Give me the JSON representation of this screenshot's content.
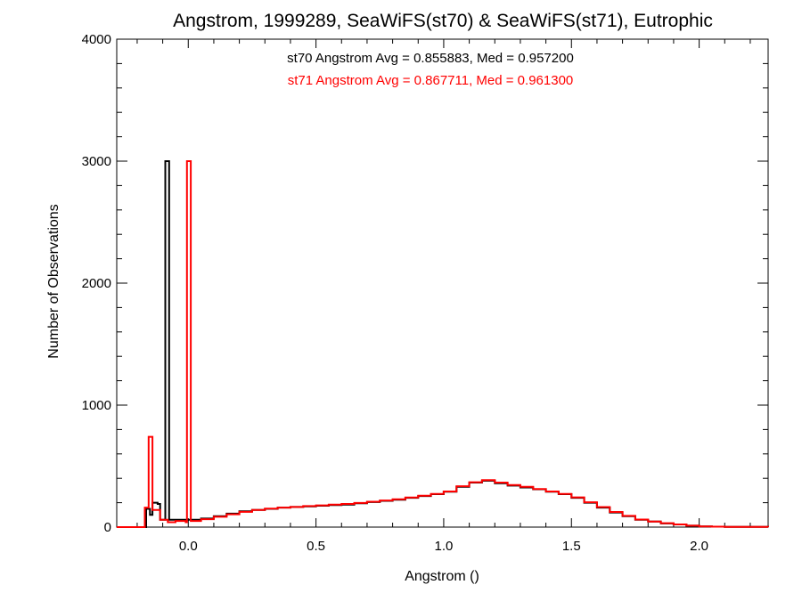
{
  "chart_data": {
    "type": "histogram",
    "title": "Angstrom, 1999289, SeaWiFS(st70) & SeaWiFS(st71), Eutrophic",
    "xlabel": "Angstrom ()",
    "ylabel": "Number of Observations",
    "xlim": [
      -0.28,
      2.27
    ],
    "ylim": [
      0,
      4000
    ],
    "x_ticks": [
      0.0,
      0.5,
      1.0,
      1.5,
      2.0
    ],
    "x_tick_labels": [
      "0.0",
      "0.5",
      "1.0",
      "1.5",
      "2.0"
    ],
    "y_ticks": [
      0,
      1000,
      2000,
      3000,
      4000
    ],
    "y_tick_labels": [
      "0",
      "1000",
      "2000",
      "3000",
      "4000"
    ],
    "grid": false,
    "annotations": [
      {
        "text": "st70 Angstrom Avg = 0.855883, Med = 0.957200",
        "color": "#000000"
      },
      {
        "text": "st71 Angstrom Avg = 0.867711, Med = 0.961300",
        "color": "#ff0000"
      }
    ],
    "series": [
      {
        "color": "#000000",
        "points": [
          [
            -0.28,
            0
          ],
          [
            -0.17,
            0
          ],
          [
            -0.165,
            150
          ],
          [
            -0.155,
            150
          ],
          [
            -0.15,
            100
          ],
          [
            -0.14,
            200
          ],
          [
            -0.12,
            190
          ],
          [
            -0.11,
            60
          ],
          [
            -0.095,
            60
          ],
          [
            -0.09,
            3000
          ],
          [
            -0.08,
            3000
          ],
          [
            -0.075,
            60
          ],
          [
            -0.05,
            60
          ],
          [
            0.0,
            60
          ],
          [
            0.05,
            70
          ],
          [
            0.1,
            90
          ],
          [
            0.15,
            110
          ],
          [
            0.2,
            130
          ],
          [
            0.25,
            140
          ],
          [
            0.3,
            150
          ],
          [
            0.35,
            160
          ],
          [
            0.4,
            165
          ],
          [
            0.45,
            170
          ],
          [
            0.5,
            175
          ],
          [
            0.55,
            180
          ],
          [
            0.6,
            185
          ],
          [
            0.65,
            195
          ],
          [
            0.7,
            205
          ],
          [
            0.75,
            215
          ],
          [
            0.8,
            225
          ],
          [
            0.85,
            240
          ],
          [
            0.9,
            255
          ],
          [
            0.95,
            270
          ],
          [
            1.0,
            290
          ],
          [
            1.05,
            330
          ],
          [
            1.1,
            365
          ],
          [
            1.15,
            380
          ],
          [
            1.2,
            360
          ],
          [
            1.25,
            340
          ],
          [
            1.3,
            325
          ],
          [
            1.35,
            310
          ],
          [
            1.4,
            290
          ],
          [
            1.45,
            270
          ],
          [
            1.5,
            240
          ],
          [
            1.55,
            200
          ],
          [
            1.6,
            160
          ],
          [
            1.65,
            120
          ],
          [
            1.7,
            90
          ],
          [
            1.75,
            60
          ],
          [
            1.8,
            45
          ],
          [
            1.85,
            30
          ],
          [
            1.9,
            22
          ],
          [
            1.95,
            12
          ],
          [
            2.0,
            6
          ],
          [
            2.05,
            4
          ],
          [
            2.1,
            2
          ],
          [
            2.27,
            0
          ]
        ]
      },
      {
        "color": "#ff0000",
        "points": [
          [
            -0.28,
            0
          ],
          [
            -0.18,
            0
          ],
          [
            -0.17,
            160
          ],
          [
            -0.16,
            160
          ],
          [
            -0.155,
            740
          ],
          [
            -0.145,
            740
          ],
          [
            -0.14,
            140
          ],
          [
            -0.12,
            140
          ],
          [
            -0.11,
            60
          ],
          [
            -0.08,
            40
          ],
          [
            -0.05,
            50
          ],
          [
            -0.01,
            40
          ],
          [
            -0.005,
            3000
          ],
          [
            0.005,
            3000
          ],
          [
            0.01,
            50
          ],
          [
            0.05,
            65
          ],
          [
            0.1,
            85
          ],
          [
            0.15,
            105
          ],
          [
            0.2,
            125
          ],
          [
            0.25,
            140
          ],
          [
            0.3,
            152
          ],
          [
            0.35,
            160
          ],
          [
            0.4,
            165
          ],
          [
            0.45,
            172
          ],
          [
            0.5,
            178
          ],
          [
            0.55,
            184
          ],
          [
            0.6,
            190
          ],
          [
            0.65,
            198
          ],
          [
            0.7,
            208
          ],
          [
            0.75,
            218
          ],
          [
            0.8,
            228
          ],
          [
            0.85,
            243
          ],
          [
            0.9,
            258
          ],
          [
            0.95,
            272
          ],
          [
            1.0,
            292
          ],
          [
            1.05,
            335
          ],
          [
            1.1,
            368
          ],
          [
            1.15,
            385
          ],
          [
            1.2,
            365
          ],
          [
            1.25,
            345
          ],
          [
            1.3,
            330
          ],
          [
            1.35,
            312
          ],
          [
            1.4,
            292
          ],
          [
            1.45,
            272
          ],
          [
            1.5,
            244
          ],
          [
            1.55,
            204
          ],
          [
            1.6,
            164
          ],
          [
            1.65,
            124
          ],
          [
            1.7,
            92
          ],
          [
            1.75,
            62
          ],
          [
            1.8,
            46
          ],
          [
            1.85,
            32
          ],
          [
            1.9,
            22
          ],
          [
            1.95,
            12
          ],
          [
            2.0,
            6
          ],
          [
            2.05,
            4
          ],
          [
            2.1,
            2
          ],
          [
            2.15,
            2
          ],
          [
            2.27,
            0
          ]
        ]
      }
    ]
  }
}
